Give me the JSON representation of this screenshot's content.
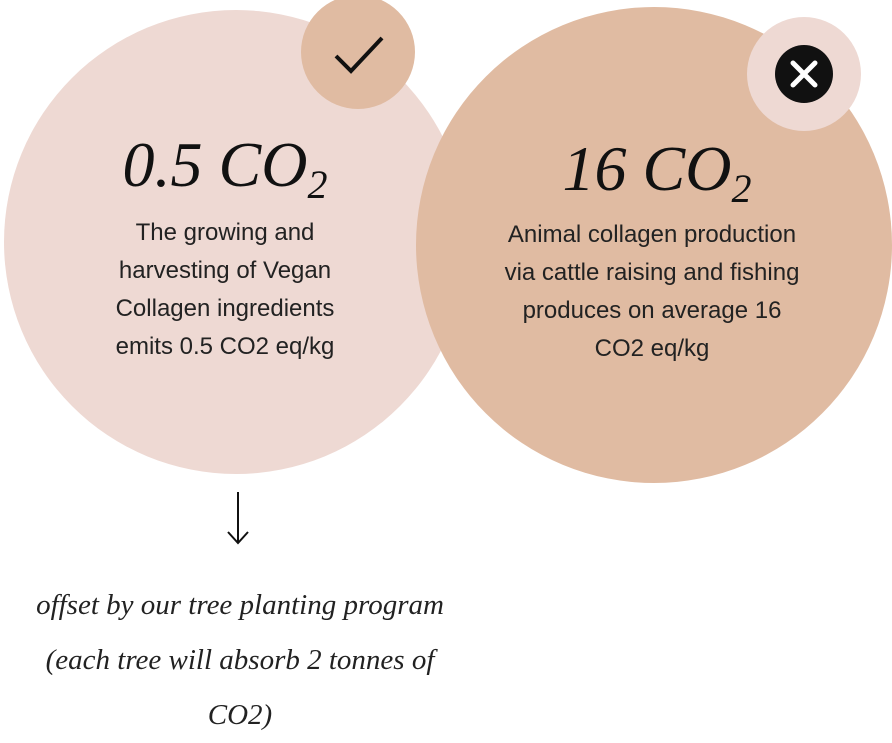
{
  "left_card": {
    "heading": {
      "main": "0.5 CO",
      "subscript": "2"
    },
    "text": "The growing and harvesting of Vegan Collagen ingredients emits 0.5 CO2 eq/kg"
  },
  "right_card": {
    "heading": {
      "main": "16 CO",
      "subscript": "2"
    },
    "text": "Animal collagen production via cattle raising and fishing produces on average 16 CO2 eq/kg"
  },
  "footnote": "offset by our tree planting program (each tree will absorb 2 tonnes of CO2)"
}
